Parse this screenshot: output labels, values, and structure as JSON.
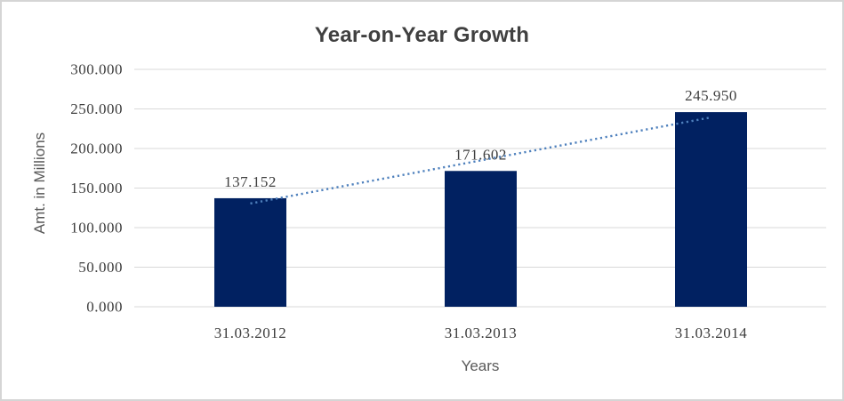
{
  "chart_data": {
    "type": "bar",
    "title": "Year-on-Year Growth",
    "xlabel": "Years",
    "ylabel": "Amt. in Millions",
    "categories": [
      "31.03.2012",
      "31.03.2013",
      "31.03.2014"
    ],
    "values": [
      137152,
      171602,
      245950
    ],
    "data_labels": [
      "137.152",
      "171.602",
      "245.950"
    ],
    "y_tick_values": [
      0,
      50000,
      100000,
      150000,
      200000,
      250000,
      300000
    ],
    "y_tick_labels": [
      "0.000",
      "50.000",
      "100.000",
      "150.000",
      "200.000",
      "250.000",
      "300.000"
    ],
    "ylim": [
      0,
      300000
    ],
    "grid": true,
    "legend": "none",
    "trendline": "linear-dotted",
    "colors": {
      "bar": "#012161",
      "trendline": "#4f81bd",
      "gridline": "#d9d9d9",
      "tick_text": "#3d3d3d",
      "title_text": "#404040",
      "axis_title_text": "#595959",
      "border": "#d5d5d5",
      "background": "#ffffff"
    }
  }
}
